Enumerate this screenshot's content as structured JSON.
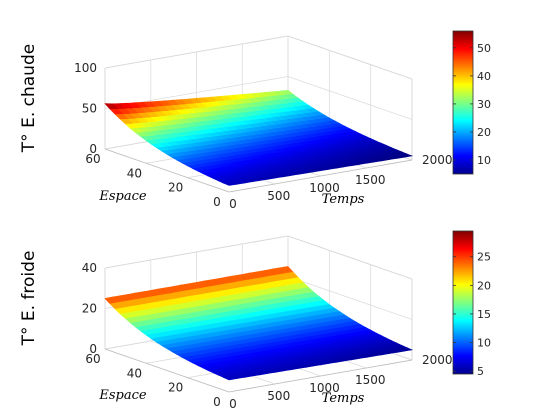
{
  "chart_data": [
    {
      "type": "surface",
      "zlabel": "T° E. chaude",
      "xlabel": "Espace",
      "ylabel": "Temps",
      "espace_lim": [
        0,
        60
      ],
      "temps_lim": [
        0,
        2000
      ],
      "zlim": [
        0,
        100
      ],
      "espace_ticks": [
        "60",
        "40",
        "20",
        "0"
      ],
      "temps_ticks": [
        "0",
        "500",
        "1000",
        "1500",
        "2000"
      ],
      "z_ticks": [
        "0",
        "50",
        "100"
      ],
      "colorbar": {
        "min": 5,
        "max": 56,
        "ticks": [
          "10",
          "20",
          "30",
          "40",
          "50"
        ]
      },
      "colormap": "jet",
      "edges": {
        "espace_max_temps_0": 56,
        "espace_max_temps_2000": 33,
        "espace_0_temps_0": 8,
        "espace_0_temps_2000": 5
      },
      "surface_temps_axis": [
        0,
        250,
        500,
        750,
        1000,
        1250,
        1500,
        1750,
        2000
      ],
      "surface_espace_axis": [
        0,
        7.5,
        15,
        22.5,
        30,
        37.5,
        45,
        52.5,
        60
      ]
    },
    {
      "type": "surface",
      "zlabel": "T° E. froide",
      "xlabel": "Espace",
      "ylabel": "Temps",
      "espace_lim": [
        0,
        60
      ],
      "temps_lim": [
        0,
        2000
      ],
      "zlim": [
        0,
        40
      ],
      "espace_ticks": [
        "60",
        "40",
        "20",
        "0"
      ],
      "temps_ticks": [
        "0",
        "500",
        "1000",
        "1500",
        "2000"
      ],
      "z_ticks": [
        "0",
        "20",
        "40"
      ],
      "colorbar": {
        "min": 4.5,
        "max": 29.5,
        "ticks": [
          "5",
          "10",
          "15",
          "20",
          "25"
        ]
      },
      "colormap": "jet",
      "edges": {
        "espace_max_temps_0": 25,
        "espace_max_temps_2000": 25,
        "espace_0_temps_0": 6,
        "espace_0_temps_2000": 5
      },
      "surface_temps_axis": [
        0,
        250,
        500,
        750,
        1000,
        1250,
        1500,
        1750,
        2000
      ],
      "surface_espace_axis": [
        0,
        7.5,
        15,
        22.5,
        30,
        37.5,
        45,
        52.5,
        60
      ]
    }
  ]
}
